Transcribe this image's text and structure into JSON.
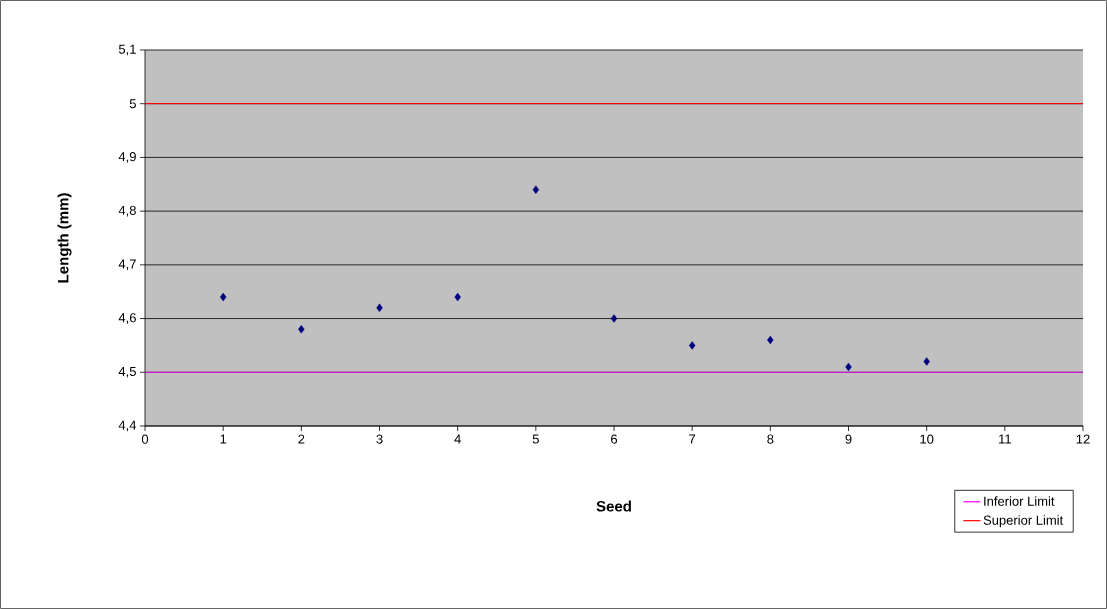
{
  "chart_data": {
    "type": "scatter",
    "xlabel": "Seed",
    "ylabel": "Length (mm)",
    "x": [
      1,
      2,
      3,
      4,
      5,
      6,
      7,
      8,
      9,
      10
    ],
    "values": [
      4.64,
      4.58,
      4.62,
      4.64,
      4.84,
      4.6,
      4.55,
      4.56,
      4.51,
      4.52
    ],
    "color": "#000080",
    "marker": "diamond",
    "xlim": [
      0,
      12
    ],
    "xticks": [
      0,
      1,
      2,
      3,
      4,
      5,
      6,
      7,
      8,
      9,
      10,
      11,
      12
    ],
    "ylim": [
      4.4,
      5.1
    ],
    "yticks": [
      {
        "value": 4.4,
        "label": "4,4"
      },
      {
        "value": 4.5,
        "label": "4,5"
      },
      {
        "value": 4.6,
        "label": "4,6"
      },
      {
        "value": 4.7,
        "label": "4,7"
      },
      {
        "value": 4.8,
        "label": "4,8"
      },
      {
        "value": 4.9,
        "label": "4,9"
      },
      {
        "value": 5,
        "label": "5"
      },
      {
        "value": 5.1,
        "label": "5,1"
      }
    ],
    "grid": "y",
    "legend": "bottom right",
    "ref_lines": [
      {
        "axis": "y",
        "value": 4.5,
        "label": "Inferior Limit",
        "color": "#ff00ff"
      },
      {
        "axis": "y",
        "value": 5,
        "label": "Superior Limit",
        "color": "#ff0000"
      }
    ]
  }
}
